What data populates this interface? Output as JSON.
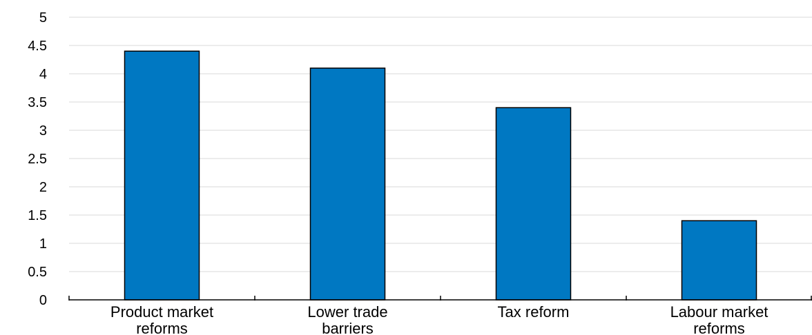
{
  "chart_data": {
    "type": "bar",
    "title": "",
    "xlabel": "",
    "ylabel": "",
    "categories": [
      [
        "Product market",
        "reforms"
      ],
      [
        "Lower trade",
        "barriers"
      ],
      [
        "Tax reform"
      ],
      [
        "Labour market",
        "reforms"
      ]
    ],
    "values": [
      4.4,
      4.1,
      3.4,
      1.4
    ],
    "ylim": [
      0,
      5
    ],
    "yticks": [
      "0",
      "0.5",
      "1",
      "1.5",
      "2",
      "2.5",
      "3",
      "3.5",
      "4",
      "4.5",
      "5"
    ],
    "grid": true,
    "colors": {
      "bar": "#0078C2",
      "bar_outline": "#000000",
      "grid": "#D9D9D9",
      "axis": "#000000"
    }
  }
}
